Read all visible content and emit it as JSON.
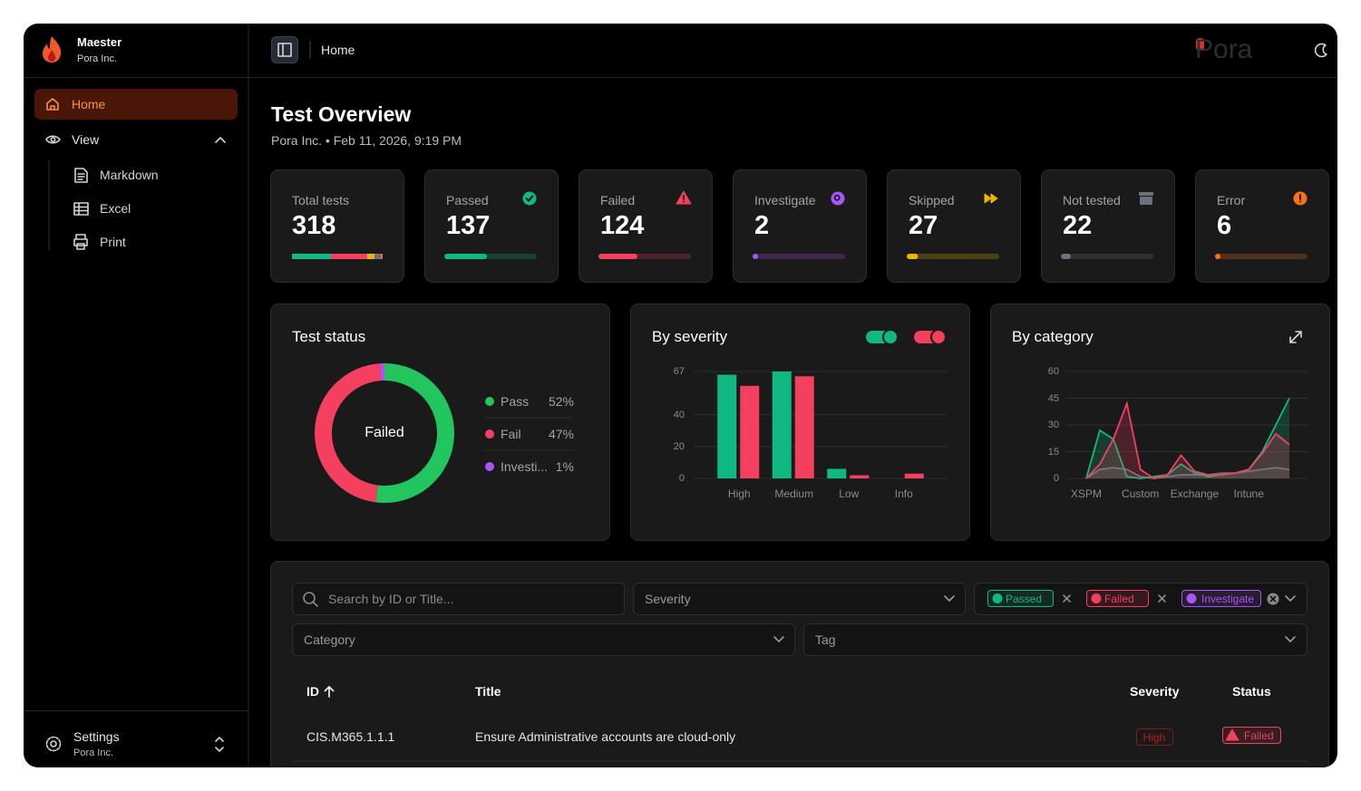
{
  "sidebar": {
    "org": "Maester",
    "org_sub": "Pora Inc.",
    "nav": [
      "Home",
      "View"
    ],
    "view_items": [
      "Markdown",
      "Excel",
      "Print"
    ],
    "footer": {
      "title": "Settings",
      "sub": "Pora Inc."
    }
  },
  "header": {
    "breadcrumb": "Home",
    "logo": "Pora"
  },
  "page": {
    "title": "Test Overview",
    "subtitle": "Pora Inc. • Feb 11, 2026, 9:19 PM"
  },
  "stats": [
    {
      "label": "Total tests",
      "value": 318
    },
    {
      "label": "Passed",
      "value": 137,
      "color": "#10b981"
    },
    {
      "label": "Failed",
      "value": 124,
      "color": "#f43f5e"
    },
    {
      "label": "Investigate",
      "value": 2,
      "color": "#a855f7"
    },
    {
      "label": "Skipped",
      "value": 27,
      "color": "#eab308"
    },
    {
      "label": "Not tested",
      "value": 22,
      "color": "#6b7280"
    },
    {
      "label": "Error",
      "value": 6,
      "color": "#f97316"
    }
  ],
  "chart_data": [
    {
      "type": "pie",
      "title": "Test status",
      "center_label": "Failed",
      "categories": [
        "Pass",
        "Fail",
        "Investi..."
      ],
      "values": [
        52,
        47,
        1
      ],
      "value_labels": [
        "52%",
        "47%",
        "1%"
      ],
      "colors": [
        "#22c55e",
        "#f43f5e",
        "#a855f7"
      ]
    },
    {
      "type": "bar",
      "title": "By severity",
      "categories": [
        "High",
        "Medium",
        "Low",
        "Info"
      ],
      "series": [
        {
          "color": "#10b981",
          "values": [
            65,
            67,
            6,
            0
          ]
        },
        {
          "color": "#f43f5e",
          "values": [
            58,
            64,
            2,
            3
          ]
        }
      ],
      "ylim": [
        0,
        67
      ],
      "yticks": [
        0,
        20,
        40,
        67
      ],
      "grid": true
    },
    {
      "type": "area",
      "title": "By category",
      "categories": [
        "XSPM",
        null,
        null,
        null,
        "Custom",
        null,
        null,
        null,
        "Exchange",
        null,
        null,
        null,
        "Intune",
        null,
        null,
        null
      ],
      "series": [
        {
          "color": "#6b7280",
          "values": [
            0,
            5,
            6,
            5,
            1,
            0,
            1,
            2,
            2,
            2,
            3,
            3,
            4,
            5,
            6,
            5
          ]
        },
        {
          "color": "#10b981",
          "values": [
            0,
            27,
            22,
            1,
            0,
            1,
            2,
            8,
            3,
            1,
            2,
            3,
            5,
            15,
            30,
            45
          ]
        },
        {
          "color": "#f43f5e",
          "values": [
            0,
            8,
            22,
            42,
            5,
            0,
            2,
            13,
            4,
            2,
            2,
            3,
            5,
            14,
            25,
            19
          ]
        }
      ],
      "ylim": [
        0,
        60
      ],
      "yticks": [
        0,
        15,
        30,
        45,
        60
      ],
      "grid": true
    }
  ],
  "filters": {
    "search": "Search by ID or Title...",
    "severity": "Severity",
    "status_chips": [
      "Passed",
      "Failed",
      "Investigate"
    ],
    "category": "Category",
    "tag": "Tag"
  },
  "table": {
    "columns": [
      "ID",
      "Title",
      "Severity",
      "Status"
    ],
    "rows": [
      [
        "CIS.M365.1.1.1",
        "Ensure Administrative accounts are cloud-only",
        "High",
        "Failed"
      ]
    ]
  }
}
